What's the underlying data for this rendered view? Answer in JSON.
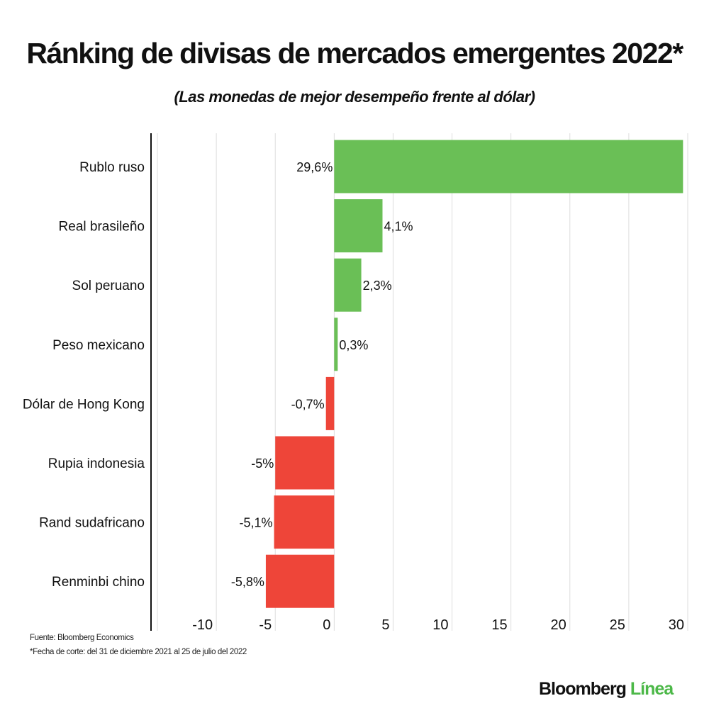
{
  "chart_data": {
    "type": "bar",
    "orientation": "horizontal",
    "title": "Ránking de divisas de mercados emergentes 2022*",
    "subtitle": "(Las monedas de mejor desempeño frente al dólar)",
    "categories": [
      "Rublo ruso",
      "Real brasileño",
      "Sol peruano",
      "Peso mexicano",
      "Dólar de Hong Kong",
      "Rupia indonesia",
      "Rand sudafricano",
      "Renminbi chino"
    ],
    "values": [
      29.6,
      4.1,
      2.3,
      0.3,
      -0.7,
      -5,
      -5.1,
      -5.8
    ],
    "data_labels": [
      "29,6%",
      "4,1%",
      "2,3%",
      "0,3%",
      "-0,7%",
      "-5%",
      "-5,1%",
      "-5,8%"
    ],
    "xlim": [
      -15,
      30
    ],
    "xticks": [
      -10,
      -5,
      0,
      5,
      10,
      15,
      20,
      25,
      30
    ],
    "xtick_labels": [
      "-10",
      "-5",
      "0",
      "5",
      "10",
      "15",
      "20",
      "25",
      "30"
    ],
    "grid": true,
    "colors": {
      "positive": "#6abf56",
      "negative": "#ee4539"
    }
  },
  "footer": {
    "source": "Fuente: Bloomberg Economics",
    "note": "*Fecha de corte: del 31 de diciembre 2021 al 25 de julio del 2022"
  },
  "logo": {
    "part1": "Bloomberg",
    "part2": "Línea"
  }
}
